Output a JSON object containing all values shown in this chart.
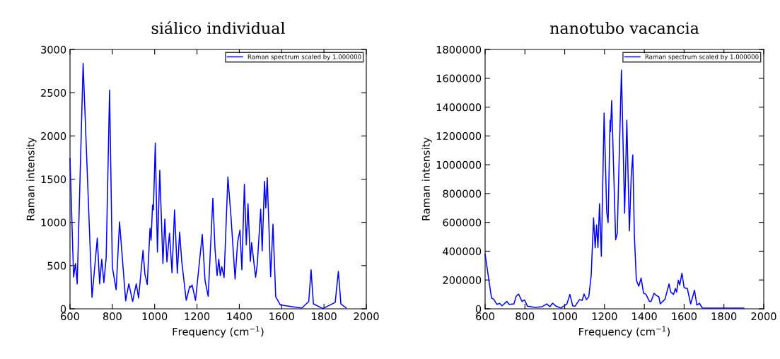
{
  "chart_data": [
    {
      "type": "line",
      "title": "siálico individual",
      "xlabel": "Frequency (cm$^{−1}$)",
      "ylabel": "Raman intensity",
      "legend": "top right",
      "grid": false,
      "marker": "none",
      "line_style": "solid",
      "xlim": [
        600,
        2000
      ],
      "xticks": [
        600,
        800,
        1000,
        1200,
        1400,
        1600,
        1800,
        2000
      ],
      "ylim": [
        0,
        3000
      ],
      "yticks": [
        0,
        500,
        1000,
        1500,
        2000,
        2500,
        3000
      ],
      "series": [
        {
          "name": "Raman spectrum scaled by 1.000000",
          "color": "#0000ff",
          "x": [
            600,
            617,
            626,
            634,
            662,
            704,
            729,
            740,
            750,
            760,
            771,
            787,
            800,
            818,
            834,
            863,
            878,
            896,
            913,
            924,
            945,
            954,
            965,
            978,
            983,
            990,
            994,
            1003,
            1013,
            1024,
            1039,
            1048,
            1058,
            1070,
            1082,
            1094,
            1107,
            1118,
            1128,
            1149,
            1166,
            1170,
            1177,
            1193,
            1212,
            1225,
            1238,
            1253,
            1275,
            1285,
            1295,
            1303,
            1310,
            1317,
            1328,
            1346,
            1361,
            1380,
            1392,
            1403,
            1412,
            1424,
            1433,
            1441,
            1452,
            1458,
            1477,
            1485,
            1501,
            1508,
            1519,
            1525,
            1532,
            1548,
            1559,
            1572,
            1594,
            1695,
            1728,
            1739,
            1750,
            1795,
            1853,
            1868,
            1880,
            1906
          ],
          "values": [
            1740,
            368,
            524,
            289,
            2838,
            133,
            818,
            289,
            572,
            303,
            597,
            2530,
            483,
            221,
            1006,
            93,
            289,
            85,
            289,
            125,
            676,
            400,
            281,
            932,
            793,
            1202,
            1145,
            1917,
            657,
            1603,
            523,
            1039,
            542,
            875,
            417,
            1145,
            411,
            889,
            548,
            98,
            262,
            250,
            275,
            98,
            554,
            861,
            327,
            145,
            1279,
            698,
            384,
            575,
            384,
            488,
            362,
            1524,
            1053,
            344,
            771,
            911,
            452,
            1440,
            739,
            1216,
            548,
            766,
            365,
            521,
            1153,
            671,
            1475,
            1167,
            1516,
            371,
            979,
            139,
            44,
            8,
            84,
            452,
            57,
            3,
            75,
            434,
            57,
            8
          ]
        }
      ]
    },
    {
      "type": "line",
      "title": "nanotubo vacancia",
      "xlabel": "Frequency (cm$^{−1}$)",
      "ylabel": "Raman intensity",
      "legend": "top right",
      "grid": false,
      "marker": "none",
      "line_style": "solid",
      "xlim": [
        600,
        2000
      ],
      "xticks": [
        600,
        800,
        1000,
        1200,
        1400,
        1600,
        1800,
        2000
      ],
      "ylim": [
        0,
        1800000
      ],
      "yticks": [
        0,
        200000,
        400000,
        600000,
        800000,
        1000000,
        1200000,
        1400000,
        1600000,
        1800000
      ],
      "series": [
        {
          "name": "Raman spectrum scaled by 1.000000",
          "color": "#0000ff",
          "x": [
            600,
            632,
            643,
            659,
            673,
            685,
            709,
            721,
            745,
            756,
            768,
            786,
            798,
            813,
            851,
            887,
            910,
            925,
            939,
            957,
            981,
            1011,
            1026,
            1040,
            1052,
            1074,
            1088,
            1097,
            1109,
            1121,
            1133,
            1145,
            1153,
            1160,
            1167,
            1175,
            1184,
            1198,
            1211,
            1218,
            1228,
            1230,
            1236,
            1256,
            1264,
            1285,
            1301,
            1312,
            1325,
            1334,
            1342,
            1350,
            1360,
            1372,
            1384,
            1396,
            1408,
            1426,
            1434,
            1449,
            1461,
            1473,
            1480,
            1504,
            1524,
            1533,
            1547,
            1556,
            1562,
            1571,
            1578,
            1589,
            1600,
            1616,
            1633,
            1652,
            1664,
            1677,
            1692,
            1900
          ],
          "values": [
            380000,
            75000,
            67000,
            31000,
            38000,
            21000,
            51000,
            31000,
            34000,
            87000,
            103000,
            51000,
            62000,
            18000,
            10000,
            15000,
            34000,
            15000,
            39000,
            18000,
            5000,
            34000,
            100000,
            21000,
            18000,
            64000,
            59000,
            103000,
            64000,
            84000,
            231000,
            631000,
            423000,
            582000,
            426000,
            729000,
            364000,
            1359000,
            672000,
            598000,
            1310000,
            1230000,
            1444000,
            479000,
            525000,
            1656000,
            664000,
            1310000,
            541000,
            917000,
            1068000,
            509000,
            198000,
            157000,
            214000,
            109000,
            101000,
            51000,
            51000,
            108000,
            92000,
            84000,
            34000,
            67000,
            173000,
            116000,
            100000,
            141000,
            116000,
            198000,
            165000,
            247000,
            146000,
            141000,
            34000,
            129000,
            26000,
            38000,
            5000,
            5000
          ]
        }
      ]
    }
  ]
}
